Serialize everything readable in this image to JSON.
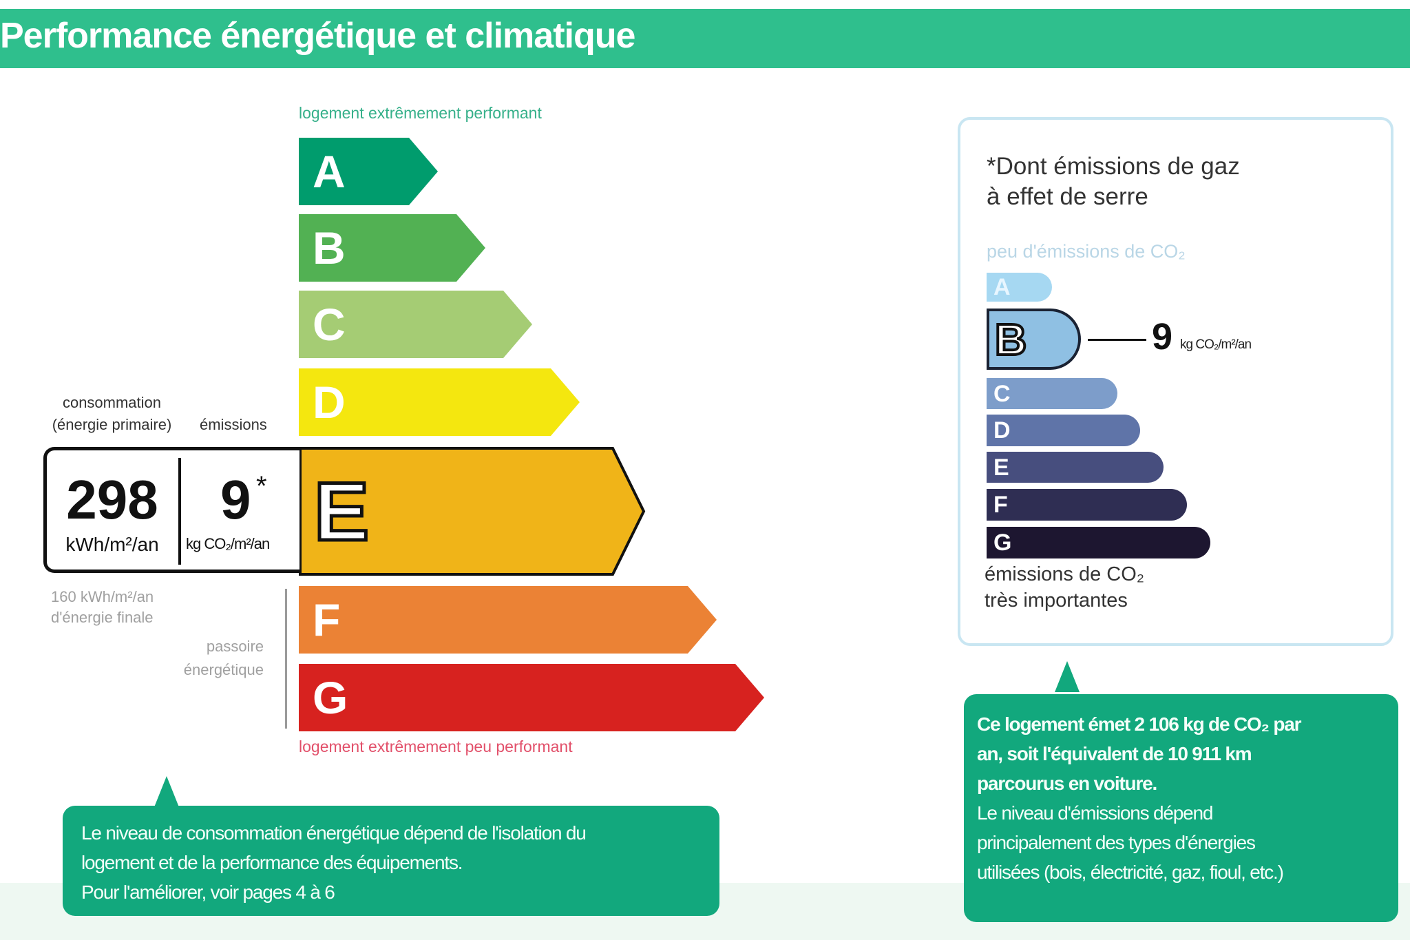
{
  "header": {
    "title": "Performance énergétique et climatique",
    "color": "#2fbf8d"
  },
  "energy_scale": {
    "top_label": "logement extrêmement performant",
    "bottom_label": "logement extrêmement peu performant",
    "current_class": "E",
    "classes": [
      {
        "letter": "A",
        "color": "#009c6d"
      },
      {
        "letter": "B",
        "color": "#52b153"
      },
      {
        "letter": "C",
        "color": "#a5cc74"
      },
      {
        "letter": "D",
        "color": "#f4e70f"
      },
      {
        "letter": "E",
        "color": "#f0b418"
      },
      {
        "letter": "F",
        "color": "#eb8235"
      },
      {
        "letter": "G",
        "color": "#d7221f"
      }
    ]
  },
  "value_box": {
    "consumption_label_1": "consommation",
    "consumption_label_2": "(énergie primaire)",
    "emissions_label": "émissions",
    "consumption_value": "298",
    "consumption_unit": "kWh/m²/an",
    "emissions_value": "9",
    "emissions_asterisk": "*",
    "emissions_unit": "kg CO₂/m²/an",
    "final_energy_1": "160 kWh/m²/an",
    "final_energy_2": "d'énergie finale",
    "passoire_1": "passoire",
    "passoire_2": "énergétique"
  },
  "left_callout": {
    "lines": [
      "Le niveau de consommation énergétique dépend de l'isolation du",
      "logement et de la performance des équipements.",
      "Pour l'améliorer, voir pages 4 à 6"
    ]
  },
  "ghg_panel": {
    "title_1": "*Dont émissions de gaz",
    "title_2": "à effet de serre",
    "top_label": "peu d'émissions de CO₂",
    "bottom_label_1": "émissions de CO₂",
    "bottom_label_2": "très importantes",
    "current_class": "B",
    "value": "9",
    "unit": "kg CO₂/m²/an",
    "classes": [
      {
        "letter": "A",
        "color": "#a6d8f2"
      },
      {
        "letter": "B",
        "color": "#8fc0e3"
      },
      {
        "letter": "C",
        "color": "#7d9dca"
      },
      {
        "letter": "D",
        "color": "#5f74a8"
      },
      {
        "letter": "E",
        "color": "#474e7e"
      },
      {
        "letter": "F",
        "color": "#2f2e53"
      },
      {
        "letter": "G",
        "color": "#1d1630"
      }
    ]
  },
  "right_callout": {
    "bold_lines": [
      "Ce logement émet 2 106 kg de CO₂ par",
      "an, soit l'équivalent de 10 911 km",
      "parcourus en voiture."
    ],
    "lines": [
      "Le niveau d'émissions dépend",
      "principalement des types d'énergies",
      "utilisées (bois, électricité, gaz, fioul, etc.)"
    ]
  },
  "callout_color": "#12a87d"
}
